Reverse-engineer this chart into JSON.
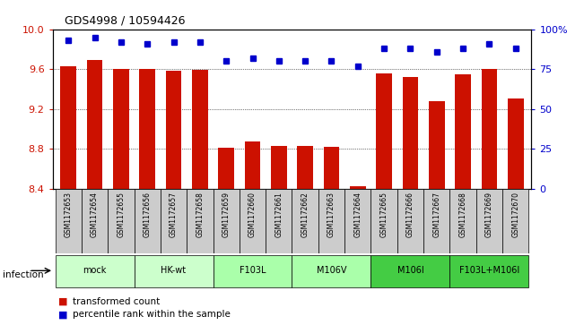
{
  "title": "GDS4998 / 10594426",
  "samples": [
    "GSM1172653",
    "GSM1172654",
    "GSM1172655",
    "GSM1172656",
    "GSM1172657",
    "GSM1172658",
    "GSM1172659",
    "GSM1172660",
    "GSM1172661",
    "GSM1172662",
    "GSM1172663",
    "GSM1172664",
    "GSM1172665",
    "GSM1172666",
    "GSM1172667",
    "GSM1172668",
    "GSM1172669",
    "GSM1172670"
  ],
  "bar_values": [
    9.63,
    9.69,
    9.6,
    9.6,
    9.58,
    9.59,
    8.81,
    8.87,
    8.83,
    8.83,
    8.82,
    8.42,
    9.56,
    9.52,
    9.28,
    9.55,
    9.6,
    9.3
  ],
  "dot_values": [
    93,
    95,
    92,
    91,
    92,
    92,
    80,
    82,
    80,
    80,
    80,
    77,
    88,
    88,
    86,
    88,
    91,
    88
  ],
  "bar_color": "#cc1100",
  "dot_color": "#0000cc",
  "ylim_left": [
    8.4,
    10.0
  ],
  "ylim_right": [
    0,
    100
  ],
  "yticks_left": [
    8.4,
    8.8,
    9.2,
    9.6,
    10.0
  ],
  "yticks_right": [
    0,
    25,
    50,
    75,
    100
  ],
  "ytick_labels_right": [
    "0",
    "25",
    "50",
    "75",
    "100%"
  ],
  "groups": [
    {
      "label": "mock",
      "start": 0,
      "end": 2,
      "color": "#ccffcc"
    },
    {
      "label": "HK-wt",
      "start": 3,
      "end": 5,
      "color": "#ccffcc"
    },
    {
      "label": "F103L",
      "start": 6,
      "end": 8,
      "color": "#aaffaa"
    },
    {
      "label": "M106V",
      "start": 9,
      "end": 11,
      "color": "#aaffaa"
    },
    {
      "label": "M106I",
      "start": 12,
      "end": 14,
      "color": "#44cc44"
    },
    {
      "label": "F103L+M106I",
      "start": 15,
      "end": 17,
      "color": "#44cc44"
    }
  ],
  "infection_label": "infection",
  "legend_bar_label": "transformed count",
  "legend_dot_label": "percentile rank within the sample",
  "bg_color": "#ffffff",
  "tick_label_color_left": "#cc1100",
  "tick_label_color_right": "#0000cc",
  "sample_bg_color": "#cccccc",
  "bar_width": 0.6
}
